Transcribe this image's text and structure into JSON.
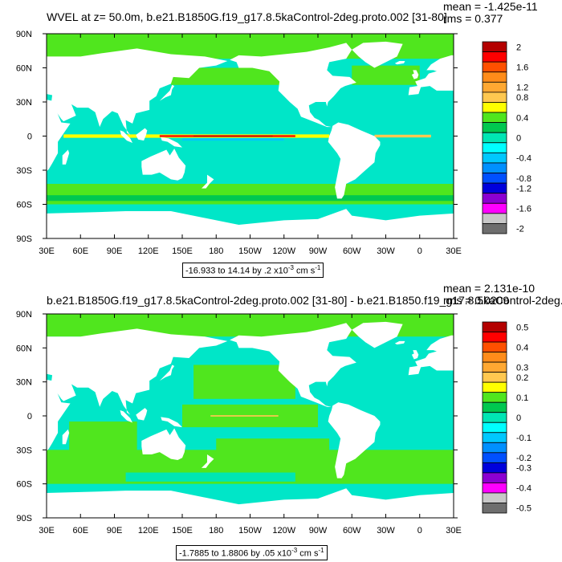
{
  "chart_data": [
    {
      "type": "heatmap",
      "title": "WVEL at z=  50.0m, b.e21.B1850G.f19_g17.8.5kaControl-2deg.proto.002 [31-80]",
      "mean_label": "mean = -1.425e-11",
      "rms_label": "rms = 0.377",
      "range_label_prefix": "-16.933 to 14.14 by .2 x10",
      "range_exp": "-3",
      "range_unit": " cm s",
      "range_unit_exp": "-1",
      "x_ticks": [
        "30E",
        "60E",
        "90E",
        "120E",
        "150E",
        "180",
        "150W",
        "120W",
        "90W",
        "60W",
        "30W",
        "0",
        "30E"
      ],
      "y_ticks": [
        "90N",
        "60N",
        "30N",
        "0",
        "30S",
        "60S",
        "90S"
      ],
      "xlim": [
        30,
        390
      ],
      "ylim": [
        -90,
        90
      ],
      "colorbar_labels": [
        "2",
        "1.6",
        "1.2",
        "0.8",
        "0.4",
        "0",
        "-0.4",
        "-0.8",
        "-1.2",
        "-1.6",
        "-2"
      ],
      "colorbar_colors": [
        "#b40000",
        "#ff0000",
        "#ff5000",
        "#ff8c1a",
        "#ffa832",
        "#ffc850",
        "#ffff00",
        "#50e61e",
        "#00c850",
        "#00e6b4",
        "#00ffff",
        "#00c8ff",
        "#0090ff",
        "#0050ff",
        "#0000dc",
        "#8c00d2",
        "#ff00ff",
        "#c8c8c8",
        "#6e6e6e"
      ]
    },
    {
      "type": "heatmap",
      "title": "b.e21.B1850G.f19_g17.8.5kaControl-2deg.proto.002 [31-80] - b.e21.B1850.f19_g17.8.5kaControl-2deg.00",
      "mean_label": "mean = 2.131e-10",
      "rms_label": "rms = 0.0209",
      "range_label_prefix": "-1.7885 to 1.8806 by .05 x10",
      "range_exp": "-3",
      "range_unit": " cm s",
      "range_unit_exp": "-1",
      "x_ticks": [
        "30E",
        "60E",
        "90E",
        "120E",
        "150E",
        "180",
        "150W",
        "120W",
        "90W",
        "60W",
        "30W",
        "0",
        "30E"
      ],
      "y_ticks": [
        "90N",
        "60N",
        "30N",
        "0",
        "30S",
        "60S",
        "90S"
      ],
      "xlim": [
        30,
        390
      ],
      "ylim": [
        -90,
        90
      ],
      "colorbar_labels": [
        "0.5",
        "0.4",
        "0.3",
        "0.2",
        "0.1",
        "0",
        "-0.1",
        "-0.2",
        "-0.3",
        "-0.4",
        "-0.5"
      ],
      "colorbar_colors": [
        "#b40000",
        "#ff0000",
        "#ff5000",
        "#ff8c1a",
        "#ffa832",
        "#ffc850",
        "#ffff00",
        "#50e61e",
        "#00c850",
        "#00e6b4",
        "#00ffff",
        "#00c8ff",
        "#0090ff",
        "#0050ff",
        "#0000dc",
        "#8c00d2",
        "#ff00ff",
        "#c8c8c8",
        "#6e6e6e"
      ]
    }
  ]
}
